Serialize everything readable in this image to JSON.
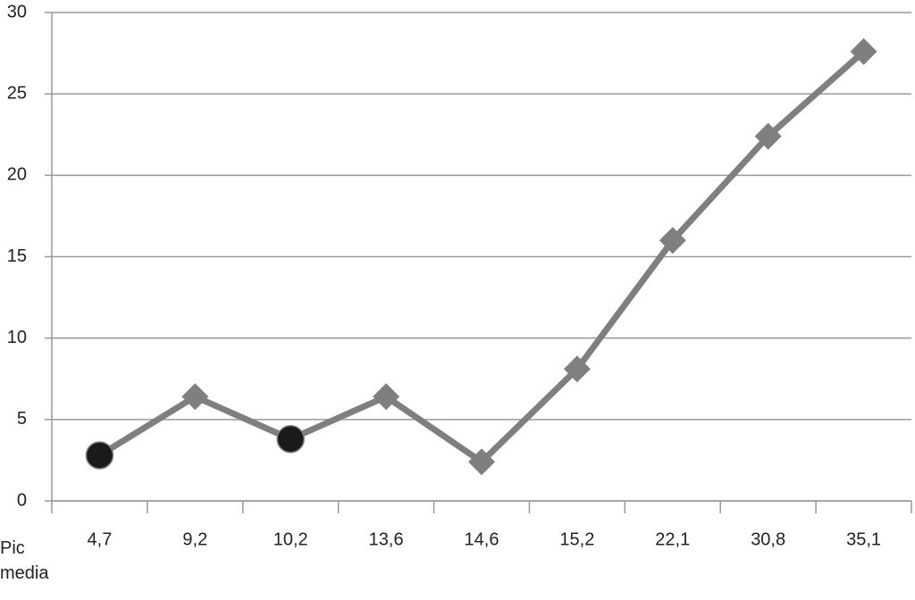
{
  "chart_data": {
    "type": "line",
    "x_label": "Pic media",
    "categories": [
      "4,7",
      "9,2",
      "10,2",
      "13,6",
      "14,6",
      "15,2",
      "22,1",
      "30,8",
      "35,1"
    ],
    "series": [
      {
        "color": "#7f7f7f",
        "values": [
          2.8,
          6.4,
          3.8,
          6.4,
          2.4,
          8.1,
          16.0,
          22.4,
          27.6
        ],
        "markers": [
          "circle",
          "diamond",
          "circle",
          "diamond",
          "diamond",
          "diamond",
          "diamond",
          "diamond",
          "diamond"
        ],
        "circle_color": "#1a1a1a"
      }
    ],
    "ylim": [
      0,
      30
    ],
    "yticks": [
      0,
      5,
      10,
      15,
      20,
      25,
      30
    ],
    "grid": true
  }
}
